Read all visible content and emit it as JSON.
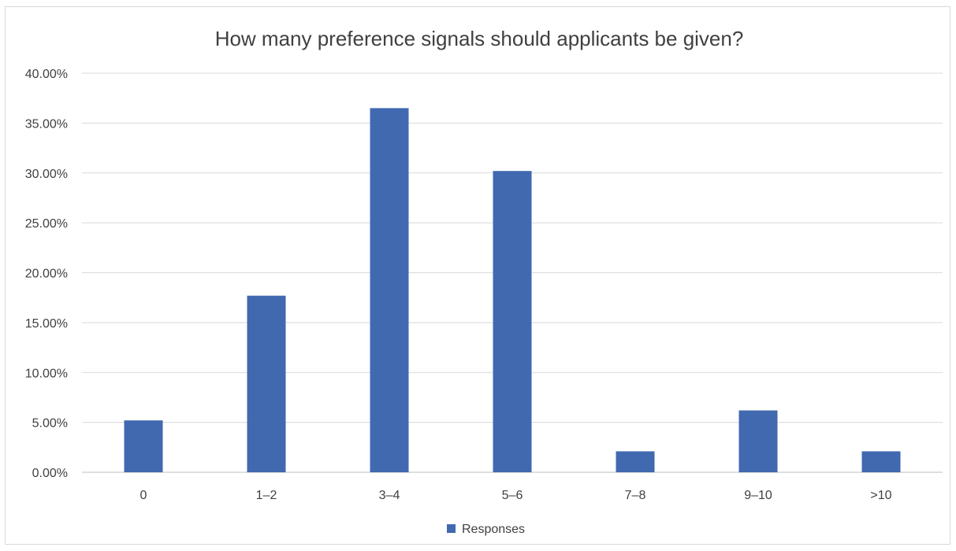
{
  "chart_data": {
    "type": "bar",
    "title": "How many preference signals should applicants be given?",
    "categories": [
      "0",
      "1–2",
      "3–4",
      "5–6",
      "7–8",
      "9–10",
      ">10"
    ],
    "series": [
      {
        "name": "Responses",
        "values": [
          5.2,
          17.7,
          36.5,
          30.2,
          2.1,
          6.2,
          2.1
        ]
      }
    ],
    "y_ticks": [
      "0.00%",
      "5.00%",
      "10.00%",
      "15.00%",
      "20.00%",
      "25.00%",
      "30.00%",
      "35.00%",
      "40.00%"
    ],
    "ylim": [
      0,
      40
    ],
    "y_unit": "percent",
    "grid": true,
    "legend_position": "bottom",
    "colors": {
      "bar": "#4169b0"
    }
  }
}
